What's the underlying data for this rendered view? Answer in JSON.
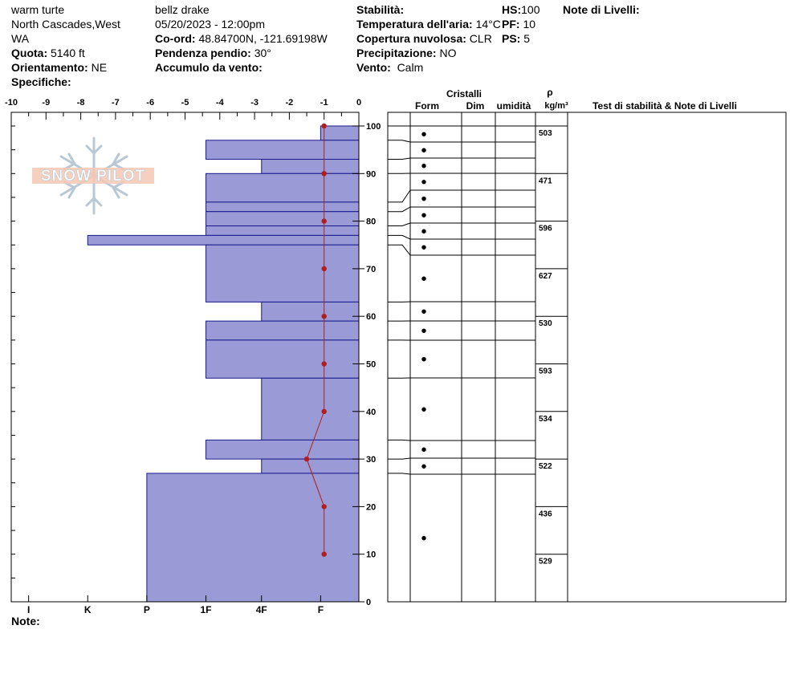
{
  "header": {
    "location_line1": "warm turte",
    "location_line2": "North Cascades,West",
    "location_line3": "WA",
    "quota_label": "Quota:",
    "quota_value": "5140 ft",
    "orient_label": "Orientamento:",
    "orient_value": "NE",
    "specifiche_label": "Specifiche:",
    "observer": "bellz drake",
    "datetime": "05/20/2023 - 12:00pm",
    "coord_label": "Co-ord:",
    "coord_value": "48.84700N, -121.69198W",
    "pendenza_label": "Pendenza pendio:",
    "pendenza_value": "30°",
    "accumulo_label": "Accumulo da vento:",
    "stabilita_label": "Stabilità:",
    "temp_label": "Temperatura dell'aria:",
    "temp_value": "14°C",
    "copertura_label": "Copertura nuvolosa:",
    "copertura_value": "CLR",
    "precip_label": "Precipitazione:",
    "precip_value": "NO",
    "vento_label": "Vento:",
    "vento_value": "Calm",
    "hs_label": "HS:",
    "hs_value": "100",
    "pf_label": "PF:",
    "pf_value": "10",
    "ps_label": "PS:",
    "ps_value": "5",
    "note_livelli_label": "Note di Livelli:",
    "note_label": "Note:"
  },
  "watermark": "SNOW PILOT",
  "colors": {
    "layer_fill": "#9a9ad6",
    "layer_stroke": "#1a1a8c",
    "temp": "#b01e1e"
  },
  "chart_data": {
    "type": "snow-profile",
    "temp_axis": {
      "ticks": [
        -10,
        -9,
        -8,
        -7,
        -6,
        -5,
        -4,
        -3,
        -2,
        -1,
        0
      ],
      "range": [
        -10,
        0
      ]
    },
    "depth_axis": {
      "ticks": [
        0,
        10,
        20,
        30,
        40,
        50,
        60,
        70,
        80,
        90,
        100
      ],
      "range": [
        0,
        100
      ]
    },
    "hardness_axis": {
      "labels": [
        "I",
        "K",
        "P",
        "1F",
        "4F",
        "F"
      ]
    },
    "layers": [
      {
        "top": 100,
        "bottom": 97,
        "hardness": "F",
        "hardness_value": -1.1
      },
      {
        "top": 97,
        "bottom": 93,
        "hardness": "1F",
        "hardness_value": -4.4
      },
      {
        "top": 93,
        "bottom": 90,
        "hardness": "4F",
        "hardness_value": -2.8
      },
      {
        "top": 90,
        "bottom": 84,
        "hardness": "1F",
        "hardness_value": -4.4
      },
      {
        "top": 84,
        "bottom": 82,
        "hardness": "1F",
        "hardness_value": -4.4
      },
      {
        "top": 82,
        "bottom": 79,
        "hardness": "1F",
        "hardness_value": -4.4
      },
      {
        "top": 79,
        "bottom": 77,
        "hardness": "1F",
        "hardness_value": -4.4
      },
      {
        "top": 77,
        "bottom": 75,
        "hardness": "K",
        "hardness_value": -7.8
      },
      {
        "top": 75,
        "bottom": 63,
        "hardness": "1F",
        "hardness_value": -4.4
      },
      {
        "top": 63,
        "bottom": 59,
        "hardness": "4F",
        "hardness_value": -2.8
      },
      {
        "top": 59,
        "bottom": 55,
        "hardness": "1F",
        "hardness_value": -4.4
      },
      {
        "top": 55,
        "bottom": 47,
        "hardness": "1F",
        "hardness_value": -4.4
      },
      {
        "top": 47,
        "bottom": 34,
        "hardness": "4F",
        "hardness_value": -2.8
      },
      {
        "top": 34,
        "bottom": 30,
        "hardness": "1F",
        "hardness_value": -4.4
      },
      {
        "top": 30,
        "bottom": 27,
        "hardness": "4F",
        "hardness_value": -2.8
      },
      {
        "top": 27,
        "bottom": 0,
        "hardness": "P",
        "hardness_value": -6.1
      }
    ],
    "temperature_profile": [
      {
        "depth": 100,
        "temp": -1
      },
      {
        "depth": 90,
        "temp": -1
      },
      {
        "depth": 80,
        "temp": -1
      },
      {
        "depth": 70,
        "temp": -1
      },
      {
        "depth": 60,
        "temp": -1
      },
      {
        "depth": 50,
        "temp": -1
      },
      {
        "depth": 40,
        "temp": -1
      },
      {
        "depth": 30,
        "temp": -1.5
      },
      {
        "depth": 20,
        "temp": -1
      },
      {
        "depth": 10,
        "temp": -1
      }
    ],
    "table_headers": {
      "cristalli": "Cristalli",
      "form": "Form",
      "dim": "Dim",
      "umidita": "umidità",
      "rho": "ρ",
      "rho_units": "kg/m³",
      "tests": "Test di stabilità & Note di Livelli"
    },
    "grain_form_symbol": "•",
    "densities": [
      {
        "top": 100,
        "bottom": 90,
        "value": "503"
      },
      {
        "top": 90,
        "bottom": 80,
        "value": "471"
      },
      {
        "top": 80,
        "bottom": 70,
        "value": "596"
      },
      {
        "top": 70,
        "bottom": 60,
        "value": "627"
      },
      {
        "top": 60,
        "bottom": 50,
        "value": "530"
      },
      {
        "top": 50,
        "bottom": 40,
        "value": "593"
      },
      {
        "top": 40,
        "bottom": 30,
        "value": "534"
      },
      {
        "top": 30,
        "bottom": 20,
        "value": "522"
      },
      {
        "top": 20,
        "bottom": 10,
        "value": "436"
      },
      {
        "top": 10,
        "bottom": 0,
        "value": "529"
      }
    ]
  }
}
